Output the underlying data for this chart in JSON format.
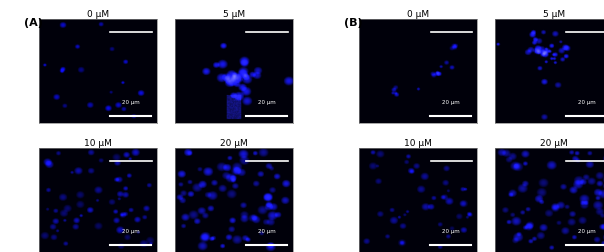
{
  "panel_A_label": "(A)",
  "panel_B_label": "(B)",
  "titles_row1": [
    "0 μM",
    "5 μM",
    "0 μM",
    "5 μM"
  ],
  "titles_row2": [
    "10 μM",
    "20 μM",
    "10 μM",
    "20 μM"
  ],
  "scale_bar_text": "20 μm",
  "background_color": "#ffffff",
  "fig_width": 6.04,
  "fig_height": 2.53,
  "image_bg": "#000010",
  "cell_color_bright": "#3333ff",
  "cell_color_mid": "#1a1aaa",
  "cell_color_dim": "#0d0d55"
}
